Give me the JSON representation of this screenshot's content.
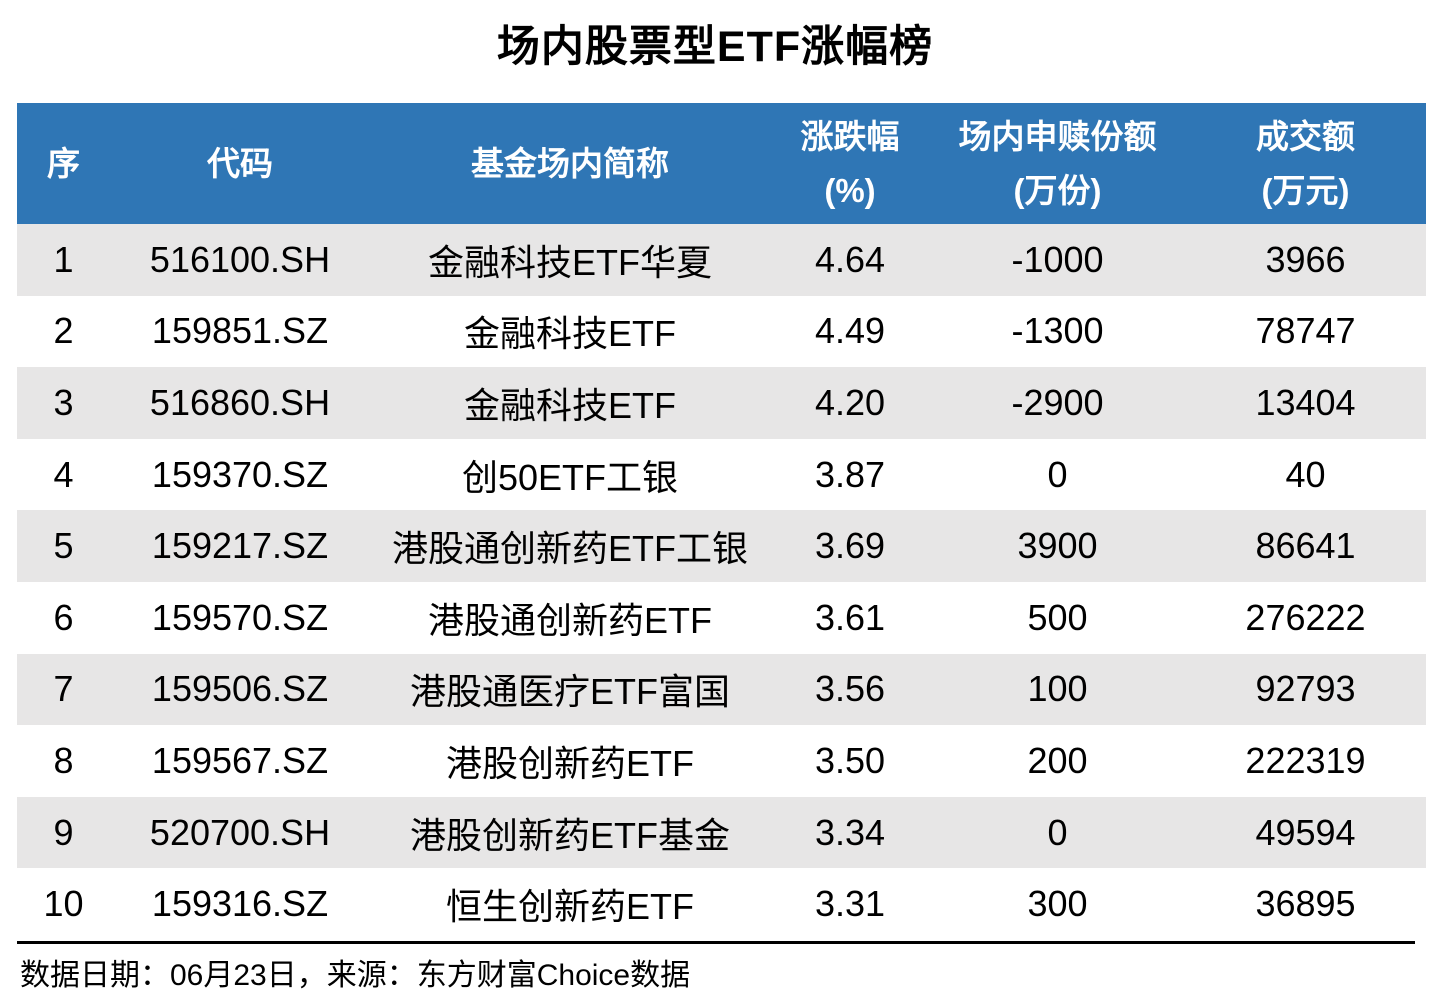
{
  "title": "场内股票型ETF涨幅榜",
  "colors": {
    "header_bg": "#2F76B5",
    "header_text": "#FFFFFF",
    "row_alt_bg": "#E7E6E6",
    "body_text": "#000000"
  },
  "table": {
    "columns": [
      {
        "label": "序"
      },
      {
        "label": "代码"
      },
      {
        "label": "基金场内简称"
      },
      {
        "label": "涨跌幅",
        "unit": "(%)"
      },
      {
        "label": "场内申赎份额",
        "unit": "(万份)"
      },
      {
        "label": "成交额",
        "unit": "(万元)"
      }
    ],
    "rows": [
      [
        "1",
        "516100.SH",
        "金融科技ETF华夏",
        "4.64",
        "-1000",
        "3966"
      ],
      [
        "2",
        "159851.SZ",
        "金融科技ETF",
        "4.49",
        "-1300",
        "78747"
      ],
      [
        "3",
        "516860.SH",
        "金融科技ETF",
        "4.20",
        "-2900",
        "13404"
      ],
      [
        "4",
        "159370.SZ",
        "创50ETF工银",
        "3.87",
        "0",
        "40"
      ],
      [
        "5",
        "159217.SZ",
        "港股通创新药ETF工银",
        "3.69",
        "3900",
        "86641"
      ],
      [
        "6",
        "159570.SZ",
        "港股通创新药ETF",
        "3.61",
        "500",
        "276222"
      ],
      [
        "7",
        "159506.SZ",
        "港股通医疗ETF富国",
        "3.56",
        "100",
        "92793"
      ],
      [
        "8",
        "159567.SZ",
        "港股创新药ETF",
        "3.50",
        "200",
        "222319"
      ],
      [
        "9",
        "520700.SH",
        "港股创新药ETF基金",
        "3.34",
        "0",
        "49594"
      ],
      [
        "10",
        "159316.SZ",
        "恒生创新药ETF",
        "3.31",
        "300",
        "36895"
      ]
    ]
  },
  "footer": "数据日期：06月23日，来源：东方财富Choice数据",
  "chart_data": {
    "type": "table",
    "title": "场内股票型ETF涨幅榜",
    "columns": [
      "序",
      "代码",
      "基金场内简称",
      "涨跌幅(%)",
      "场内申赎份额(万份)",
      "成交额(万元)"
    ],
    "rows": [
      [
        1,
        "516100.SH",
        "金融科技ETF华夏",
        4.64,
        -1000,
        3966
      ],
      [
        2,
        "159851.SZ",
        "金融科技ETF",
        4.49,
        -1300,
        78747
      ],
      [
        3,
        "516860.SH",
        "金融科技ETF",
        4.2,
        -2900,
        13404
      ],
      [
        4,
        "159370.SZ",
        "创50ETF工银",
        3.87,
        0,
        40
      ],
      [
        5,
        "159217.SZ",
        "港股通创新药ETF工银",
        3.69,
        3900,
        86641
      ],
      [
        6,
        "159570.SZ",
        "港股通创新药ETF",
        3.61,
        500,
        276222
      ],
      [
        7,
        "159506.SZ",
        "港股通医疗ETF富国",
        3.56,
        100,
        92793
      ],
      [
        8,
        "159567.SZ",
        "港股创新药ETF",
        3.5,
        200,
        222319
      ],
      [
        9,
        "520700.SH",
        "港股创新药ETF基金",
        3.34,
        0,
        49594
      ],
      [
        10,
        "159316.SZ",
        "恒生创新药ETF",
        3.31,
        300,
        36895
      ]
    ],
    "source_note": "数据日期：06月23日，来源：东方财富Choice数据",
    "layout": {
      "header_two_line_units": true,
      "zebra_striping": "odd-rows-gray"
    }
  }
}
